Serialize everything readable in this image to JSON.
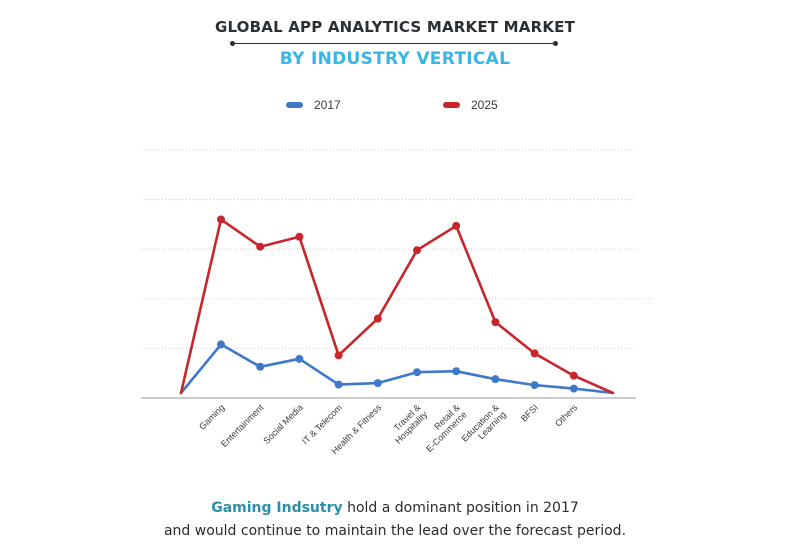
{
  "title": "GLOBAL APP ANALYTICS  MARKET MARKET",
  "subtitle": "BY INDUSTRY VERTICAL",
  "footer": {
    "highlight": "Gaming Indsutry",
    "line1_rest": " hold a dominant position in 2017",
    "line2": "and would continue to maintain the lead over the forecast period."
  },
  "colors": {
    "series_2017": "#3d78c9",
    "series_2025": "#c8262b",
    "grid": "#cfcfcf",
    "axis": "#9a9a9a"
  },
  "chart_data": {
    "type": "line",
    "title": "GLOBAL APP ANALYTICS  MARKET MARKET",
    "subtitle": "BY INDUSTRY VERTICAL",
    "xlabel": "",
    "ylabel": "",
    "categories": [
      "Gaming",
      "Entertainment",
      "Social Media",
      "IT & Telecom",
      "Health & Fitness",
      "Travel & Hospitality",
      "Retail & E-Commerce",
      "Education & Learning",
      "BFSI",
      "Others"
    ],
    "category_lines": [
      [
        "Gaming"
      ],
      [
        "Entertainment"
      ],
      [
        "Social Media"
      ],
      [
        "IT & Telecom"
      ],
      [
        "Health & Fitness"
      ],
      [
        "Travel &",
        "Hospitality"
      ],
      [
        "Retail &",
        "E-Commerce"
      ],
      [
        "Education &",
        "Learning"
      ],
      [
        "BFSI"
      ],
      [
        "Others"
      ]
    ],
    "ylim": [
      0,
      5
    ],
    "grid": true,
    "y_ticks_shown": false,
    "legend_placement": "top-center",
    "line_start": 0.1,
    "line_end": 0.1,
    "series": [
      {
        "name": "2017",
        "values": [
          1.08,
          0.63,
          0.79,
          0.27,
          0.3,
          0.52,
          0.54,
          0.38,
          0.26,
          0.19
        ]
      },
      {
        "name": "2025",
        "values": [
          3.6,
          3.05,
          3.25,
          0.86,
          1.6,
          2.98,
          3.47,
          1.53,
          0.9,
          0.45
        ]
      }
    ]
  }
}
